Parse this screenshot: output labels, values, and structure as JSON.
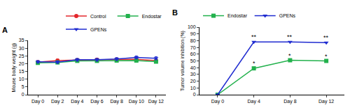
{
  "chart_data": [
    {
      "type": "line",
      "title": "A",
      "y_label": "Mouse body weight (g)",
      "categories": [
        "Day 0",
        "Day 2",
        "Day 4",
        "Day 6",
        "Day 8",
        "Day 10",
        "Day 12"
      ],
      "ylim": [
        0,
        35
      ],
      "yticks": [
        0,
        5,
        10,
        15,
        20,
        25,
        30,
        35
      ],
      "grid": false,
      "legend": "upper right",
      "series": [
        {
          "name": "Control",
          "color": "#e3262b",
          "marker": "circle",
          "values": [
            21.0,
            22.0,
            22.3,
            22.6,
            22.7,
            22.8,
            22.0
          ],
          "errors": [
            0.8,
            0.9,
            0.8,
            0.8,
            0.8,
            0.9,
            0.8
          ]
        },
        {
          "name": "Endostar",
          "color": "#22b14c",
          "marker": "square",
          "values": [
            20.5,
            20.8,
            21.8,
            21.8,
            22.0,
            22.0,
            21.3
          ],
          "errors": [
            0.7,
            0.7,
            0.7,
            0.7,
            0.7,
            0.8,
            0.8
          ]
        },
        {
          "name": "GPENs",
          "color": "#1f2bd0",
          "marker": "triangle-down",
          "values": [
            21.2,
            21.0,
            22.5,
            22.5,
            23.0,
            24.0,
            23.5
          ],
          "errors": [
            0.8,
            0.8,
            0.9,
            0.9,
            0.9,
            1.0,
            1.0
          ]
        }
      ]
    },
    {
      "type": "line",
      "title": "B",
      "y_label": "Tumor volume inhibition (%)",
      "categories": [
        "Day 0",
        "Day 4",
        "Day 8",
        "Day 12"
      ],
      "ylim": [
        0,
        100
      ],
      "yticks": [
        0,
        10,
        20,
        30,
        40,
        50,
        60,
        70,
        80,
        90,
        100
      ],
      "grid": false,
      "legend": "upper left",
      "series": [
        {
          "name": "Endostar",
          "color": "#22b14c",
          "marker": "square",
          "values": [
            0,
            39,
            51,
            50
          ],
          "significance": [
            null,
            "*",
            "*",
            "*"
          ]
        },
        {
          "name": "GPENs",
          "color": "#1f2bd0",
          "marker": "triangle-down",
          "values": [
            0,
            78,
            78,
            77
          ],
          "significance": [
            null,
            "**",
            "**",
            "**"
          ]
        }
      ]
    }
  ]
}
